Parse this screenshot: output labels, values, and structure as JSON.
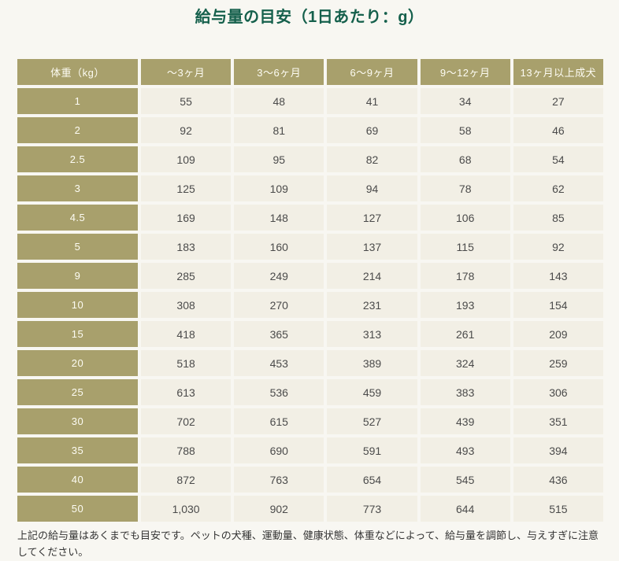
{
  "title": "給与量の目安（1日あたり：g）",
  "footnote": "上記の給与量はあくまでも目安です。ペットの犬種、運動量、健康状態、体重などによって、給与量を調節し、与えすぎに注意してください。",
  "colors": {
    "page_background": "#f8f7f2",
    "title_text": "#15604c",
    "header_cell_background": "#a8a06c",
    "header_cell_text": "#fdfcf3",
    "value_cell_background": "#f2efe5",
    "value_cell_text": "#4b4b4b",
    "footnote_text": "#333333"
  },
  "chart_data": {
    "type": "table",
    "title": "給与量の目安（1日あたり：g）",
    "unit": "g/day",
    "columns": [
      "体重（kg）",
      "～3ヶ月",
      "3～6ヶ月",
      "6～9ヶ月",
      "9～12ヶ月",
      "13ヶ月以上成犬"
    ],
    "rows": [
      {
        "weight": "1",
        "values": [
          "55",
          "48",
          "41",
          "34",
          "27"
        ]
      },
      {
        "weight": "2",
        "values": [
          "92",
          "81",
          "69",
          "58",
          "46"
        ]
      },
      {
        "weight": "2.5",
        "values": [
          "109",
          "95",
          "82",
          "68",
          "54"
        ]
      },
      {
        "weight": "3",
        "values": [
          "125",
          "109",
          "94",
          "78",
          "62"
        ]
      },
      {
        "weight": "4.5",
        "values": [
          "169",
          "148",
          "127",
          "106",
          "85"
        ]
      },
      {
        "weight": "5",
        "values": [
          "183",
          "160",
          "137",
          "115",
          "92"
        ]
      },
      {
        "weight": "9",
        "values": [
          "285",
          "249",
          "214",
          "178",
          "143"
        ]
      },
      {
        "weight": "10",
        "values": [
          "308",
          "270",
          "231",
          "193",
          "154"
        ]
      },
      {
        "weight": "15",
        "values": [
          "418",
          "365",
          "313",
          "261",
          "209"
        ]
      },
      {
        "weight": "20",
        "values": [
          "518",
          "453",
          "389",
          "324",
          "259"
        ]
      },
      {
        "weight": "25",
        "values": [
          "613",
          "536",
          "459",
          "383",
          "306"
        ]
      },
      {
        "weight": "30",
        "values": [
          "702",
          "615",
          "527",
          "439",
          "351"
        ]
      },
      {
        "weight": "35",
        "values": [
          "788",
          "690",
          "591",
          "493",
          "394"
        ]
      },
      {
        "weight": "40",
        "values": [
          "872",
          "763",
          "654",
          "545",
          "436"
        ]
      },
      {
        "weight": "50",
        "values": [
          "1,030",
          "902",
          "773",
          "644",
          "515"
        ]
      }
    ]
  }
}
